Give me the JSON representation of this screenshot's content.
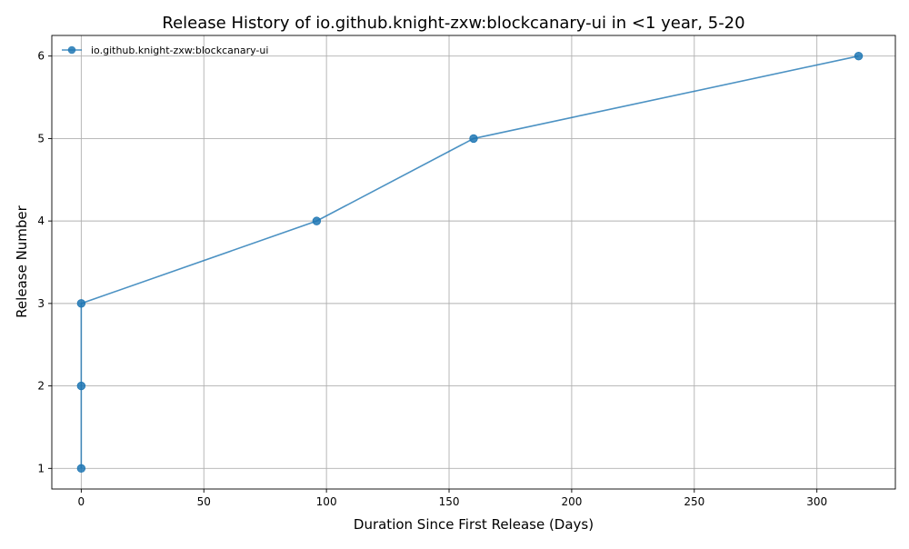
{
  "chart_data": {
    "type": "line",
    "title": "Release History of io.github.knight-zxw:blockcanary-ui in <1 year, 5-20",
    "xlabel": "Duration Since First Release (Days)",
    "ylabel": "Release Number",
    "xlim": [
      -12,
      332
    ],
    "ylim": [
      0.75,
      6.25
    ],
    "xticks": [
      0,
      50,
      100,
      150,
      200,
      250,
      300
    ],
    "yticks": [
      1,
      2,
      3,
      4,
      5,
      6
    ],
    "grid": true,
    "legend_position": "top-left",
    "series": [
      {
        "name": "io.github.knight-zxw:blockcanary-ui",
        "color": "#1f77b4",
        "marker": "circle",
        "x": [
          0,
          0,
          0,
          96,
          160,
          317
        ],
        "y": [
          1,
          2,
          3,
          4,
          5,
          6
        ]
      }
    ]
  }
}
